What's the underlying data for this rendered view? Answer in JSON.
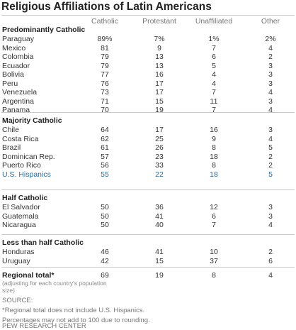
{
  "title": "Religious Affiliations of Latin Americans",
  "columns": [
    "Catholic",
    "Protestant",
    "Unaffiliated",
    "Other"
  ],
  "highlight_color": "#2f6a9a",
  "chart_data": {
    "type": "table",
    "title": "Religious Affiliations of Latin Americans",
    "columns": [
      "Catholic",
      "Protestant",
      "Unaffiliated",
      "Other"
    ],
    "groups": [
      {
        "name": "Predominantly Catholic",
        "rows": [
          {
            "country": "Paraguay",
            "values": [
              "89%",
              "7%",
              "1%",
              "2%"
            ]
          },
          {
            "country": "Mexico",
            "values": [
              "81",
              "9",
              "7",
              "4"
            ]
          },
          {
            "country": "Colombia",
            "values": [
              "79",
              "13",
              "6",
              "2"
            ]
          },
          {
            "country": "Ecuador",
            "values": [
              "79",
              "13",
              "5",
              "3"
            ]
          },
          {
            "country": "Bolivia",
            "values": [
              "77",
              "16",
              "4",
              "3"
            ]
          },
          {
            "country": "Peru",
            "values": [
              "76",
              "17",
              "4",
              "3"
            ]
          },
          {
            "country": "Venezuela",
            "values": [
              "73",
              "17",
              "7",
              "4"
            ]
          },
          {
            "country": "Argentina",
            "values": [
              "71",
              "15",
              "11",
              "3"
            ]
          },
          {
            "country": "Panama",
            "values": [
              "70",
              "19",
              "7",
              "4"
            ]
          }
        ]
      },
      {
        "name": "Majority Catholic",
        "rows": [
          {
            "country": "Chile",
            "values": [
              "64",
              "17",
              "16",
              "3"
            ]
          },
          {
            "country": "Costa Rica",
            "values": [
              "62",
              "25",
              "9",
              "4"
            ]
          },
          {
            "country": "Brazil",
            "values": [
              "61",
              "26",
              "8",
              "5"
            ]
          },
          {
            "country": "Dominican Rep.",
            "values": [
              "57",
              "23",
              "18",
              "2"
            ]
          },
          {
            "country": "Puerto Rico",
            "values": [
              "56",
              "33",
              "8",
              "2"
            ]
          },
          {
            "country": "U.S. Hispanics",
            "values": [
              "55",
              "22",
              "18",
              "5"
            ],
            "highlight": true
          }
        ]
      },
      {
        "name": "Half Catholic",
        "rows": [
          {
            "country": "El Salvador",
            "values": [
              "50",
              "36",
              "12",
              "3"
            ]
          },
          {
            "country": "Guatemala",
            "values": [
              "50",
              "41",
              "6",
              "3"
            ]
          },
          {
            "country": "Nicaragua",
            "values": [
              "50",
              "40",
              "7",
              "4"
            ]
          }
        ]
      },
      {
        "name": "Less than half Catholic",
        "rows": [
          {
            "country": "Honduras",
            "values": [
              "46",
              "41",
              "10",
              "2"
            ]
          },
          {
            "country": "Uruguay",
            "values": [
              "42",
              "15",
              "37",
              "6"
            ]
          }
        ]
      },
      {
        "name": "Regional total*",
        "rows": [
          {
            "country": "",
            "values": [
              "69",
              "19",
              "8",
              "4"
            ]
          }
        ]
      }
    ]
  },
  "regional_note": "(adjusting for each country's population size)",
  "footnotes": [
    "SOURCE:",
    "*Regional total does not include U.S. Hispanics.",
    "Percentages may not add to 100 due to rounding.",
    "PEW RESEARCH CENTER"
  ]
}
